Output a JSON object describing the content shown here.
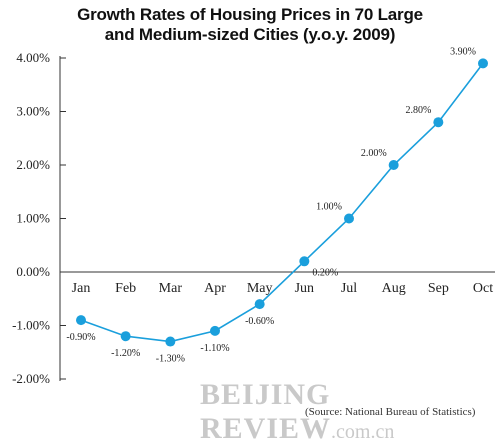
{
  "chart_data": {
    "type": "line",
    "title_lines": [
      "Growth Rates of Housing Prices in 70 Large",
      "and Medium-sized Cities (y.o.y. 2009)"
    ],
    "categories": [
      "Jan",
      "Feb",
      "Mar",
      "Apr",
      "May",
      "Jun",
      "Jul",
      "Aug",
      "Sep",
      "Oct"
    ],
    "series": [
      {
        "values": [
          -0.9,
          -1.2,
          -1.3,
          -1.1,
          -0.6,
          0.2,
          1.0,
          2.0,
          2.8,
          3.9
        ],
        "labels": [
          "-0.90%",
          "-1.20%",
          "-1.30%",
          "-1.10%",
          "-0.60%",
          "0.20%",
          "1.00%",
          "2.00%",
          "2.80%",
          "3.90%"
        ]
      }
    ],
    "yticks": [
      "4.00%",
      "3.00%",
      "2.00%",
      "1.00%",
      "0.00%",
      "-1.00%",
      "-2.00%"
    ],
    "ytick_values": [
      4,
      3,
      2,
      1,
      0,
      -1,
      -2
    ],
    "ylim": [
      -2,
      4
    ],
    "grid": false,
    "color": "#1a9fdc"
  },
  "watermark": {
    "main": "BEIJING REVIEW",
    "domain": ".com.cn"
  },
  "source": "(Source: National Bureau of Statistics)"
}
